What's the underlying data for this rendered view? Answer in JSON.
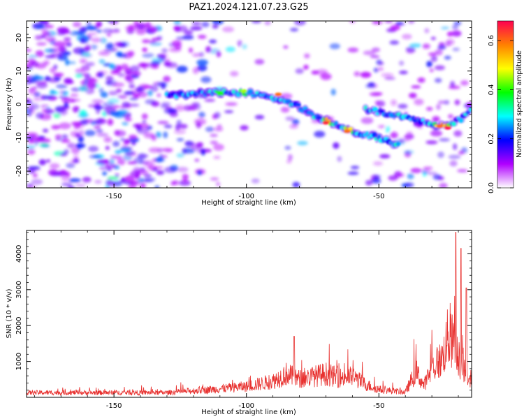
{
  "chart_data": [
    {
      "type": "heatmap",
      "title": "PAZ1.2024.121.07.23.G25",
      "xlabel": "Height of straight line (km)",
      "ylabel": "Frequency (Hz)",
      "xlim": [
        -183,
        -15
      ],
      "ylim": [
        -25,
        25
      ],
      "xticks": [
        -150,
        -100,
        -50
      ],
      "yticks": [
        -20,
        -10,
        0,
        10,
        20
      ],
      "colorbar": {
        "label": "Normalized spectral amplitude",
        "range": [
          0.0,
          0.68
        ],
        "ticks": [
          0.0,
          0.2,
          0.4,
          0.6
        ],
        "colormap": [
          "#ffffff",
          "#b000ff",
          "#0000ff",
          "#00ffff",
          "#00ff00",
          "#ffff00",
          "#ff8000",
          "#ff0050"
        ]
      },
      "ridges": [
        {
          "x": [
            -130,
            -115,
            -100,
            -90,
            -82,
            -75,
            -68,
            -60,
            -50,
            -42
          ],
          "y": [
            2.5,
            3.5,
            3.5,
            2,
            0,
            -3,
            -5.5,
            -8,
            -10,
            -12.5
          ]
        },
        {
          "x": [
            -55,
            -45,
            -35,
            -25,
            -18,
            -15
          ],
          "y": [
            -1.5,
            -3,
            -5,
            -6.5,
            -4,
            -1
          ]
        }
      ],
      "peaks": [
        {
          "x": -110,
          "y": 3.5,
          "v": 0.4
        },
        {
          "x": -101,
          "y": 4,
          "v": 0.45
        },
        {
          "x": -88,
          "y": 3,
          "v": 0.6
        },
        {
          "x": -70,
          "y": -5.5,
          "v": 0.65
        },
        {
          "x": -62,
          "y": -8,
          "v": 0.6
        },
        {
          "x": -27,
          "y": -6.5,
          "v": 0.6
        },
        {
          "x": -24,
          "y": -7,
          "v": 0.68
        }
      ]
    },
    {
      "type": "line",
      "xlabel": "Height of straight line (km)",
      "ylabel": "SNR (10 * v/v)",
      "xlim": [
        -183,
        -15
      ],
      "ylim": [
        0,
        4650
      ],
      "xticks": [
        -150,
        -100,
        -50
      ],
      "yticks": [
        1000,
        2000,
        3000,
        4000
      ],
      "color": "#e8312f",
      "envelope": {
        "x": [
          -183,
          -130,
          -120,
          -110,
          -100,
          -90,
          -85,
          -80,
          -75,
          -70,
          -65,
          -60,
          -55,
          -50,
          -45,
          -40,
          -36,
          -33,
          -30,
          -28,
          -26,
          -24,
          -22,
          -20,
          -18,
          -15
        ],
        "y": [
          180,
          180,
          250,
          330,
          420,
          620,
          900,
          700,
          800,
          900,
          750,
          800,
          500,
          300,
          250,
          200,
          1000,
          450,
          1100,
          1300,
          1500,
          2300,
          2100,
          1500,
          1100,
          700
        ]
      },
      "spikes": [
        {
          "x": -82,
          "y": 1700
        },
        {
          "x": -21,
          "y": 4600
        },
        {
          "x": -19,
          "y": 4150
        },
        {
          "x": -17,
          "y": 3050
        }
      ]
    }
  ]
}
